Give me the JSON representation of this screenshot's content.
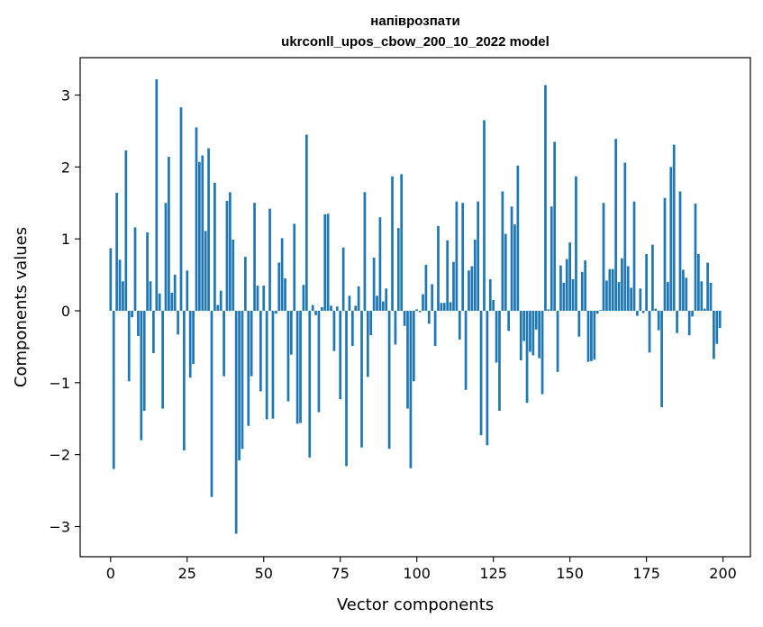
{
  "chart_data": {
    "type": "bar",
    "title_line1": "напіврозпати",
    "title_line2": "ukrconll_upos_cbow_200_10_2022 model",
    "xlabel": "Vector components",
    "ylabel": "Components values",
    "xlim": [
      -9.95,
      208.95
    ],
    "ylim": [
      -3.42,
      3.52
    ],
    "xticks": [
      0,
      25,
      50,
      75,
      100,
      125,
      150,
      175,
      200
    ],
    "yticks": [
      -3,
      -2,
      -1,
      0,
      1,
      2,
      3
    ],
    "grid": false,
    "bar_color": "#1f77b4",
    "series": [
      {
        "values": [
          0.87,
          -2.2,
          1.64,
          0.71,
          0.41,
          2.23,
          -0.98,
          -0.09,
          1.16,
          -0.35,
          -1.8,
          -1.39,
          1.09,
          0.41,
          -0.59,
          3.22,
          0.24,
          -1.36,
          1.5,
          2.14,
          0.25,
          0.5,
          -0.33,
          2.83,
          -1.94,
          0.56,
          -0.93,
          -0.74,
          2.55,
          2.07,
          2.16,
          1.11,
          2.26,
          -2.59,
          1.78,
          0.08,
          0.28,
          -0.91,
          1.53,
          1.65,
          0.99,
          -3.1,
          -2.08,
          -1.92,
          0.75,
          -1.6,
          -0.91,
          1.5,
          0.35,
          -1.12,
          0.35,
          -1.51,
          1.42,
          -1.5,
          -0.04,
          0.67,
          1.01,
          0.45,
          -1.26,
          -0.61,
          1.21,
          -1.57,
          -1.56,
          0.36,
          2.45,
          -2.04,
          0.08,
          -0.06,
          -1.41,
          0.05,
          1.34,
          1.35,
          0.07,
          -0.56,
          0.06,
          -1.23,
          0.88,
          -2.16,
          0.21,
          -0.49,
          0.07,
          0.34,
          -1.9,
          1.65,
          -0.92,
          -0.34,
          0.74,
          0.21,
          1.3,
          0.13,
          0.31,
          -1.92,
          1.87,
          -0.47,
          1.15,
          1.9,
          -0.21,
          -1.36,
          -2.19,
          -0.98,
          0.02,
          -0.02,
          0.23,
          0.64,
          -0.18,
          0.37,
          -0.49,
          1.18,
          0.11,
          0.11,
          0.98,
          0.12,
          0.68,
          1.52,
          -0.4,
          1.5,
          -1.1,
          0.56,
          0.62,
          0.99,
          1.52,
          -1.73,
          2.65,
          -1.87,
          0.44,
          0.15,
          -0.72,
          -1.39,
          1.66,
          1.07,
          -0.28,
          1.45,
          1.2,
          2.02,
          -0.69,
          -0.42,
          -1.28,
          -0.57,
          -0.62,
          -0.26,
          -0.66,
          -1.16,
          3.14,
          0.02,
          1.45,
          2.35,
          -0.85,
          0.63,
          0.39,
          0.72,
          0.95,
          0.44,
          1.87,
          -0.36,
          0.54,
          0.7,
          -0.71,
          -0.7,
          -0.68,
          -0.04,
          0.01,
          1.5,
          0.42,
          0.58,
          0.58,
          2.39,
          0.4,
          0.73,
          2.06,
          0.62,
          0.32,
          1.52,
          -0.07,
          0.31,
          -0.03,
          0.79,
          -0.58,
          0.92,
          0.03,
          -0.27,
          -1.34,
          1.57,
          0.4,
          2.0,
          2.31,
          -0.31,
          1.66,
          0.57,
          0.46,
          -0.34,
          -0.08,
          1.49,
          0.79,
          0.41,
          0.03,
          0.67,
          0.39,
          -0.67,
          -0.46,
          -0.24
        ]
      }
    ]
  }
}
